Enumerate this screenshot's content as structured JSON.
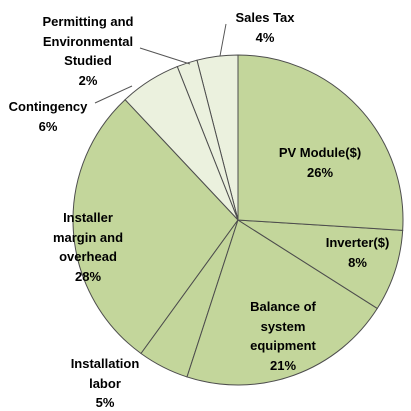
{
  "chart_data": {
    "type": "pie",
    "categories": [
      "PV Module($)",
      "Inverter($)",
      "Balance of system equipment",
      "Installation labor",
      "Installer margin and overhead",
      "Contingency",
      "Permitting and Environmental Studied",
      "Sales Tax"
    ],
    "values": [
      26,
      8,
      21,
      5,
      28,
      6,
      2,
      4
    ],
    "value_labels": [
      "26%",
      "8%",
      "21%",
      "5%",
      "28%",
      "6%",
      "2%",
      "4%"
    ],
    "colors": [
      "#c3d69b",
      "#c3d69b",
      "#c3d69b",
      "#c3d69b",
      "#c3d69b",
      "#ebf1de",
      "#ebf1de",
      "#ebf1de"
    ]
  }
}
